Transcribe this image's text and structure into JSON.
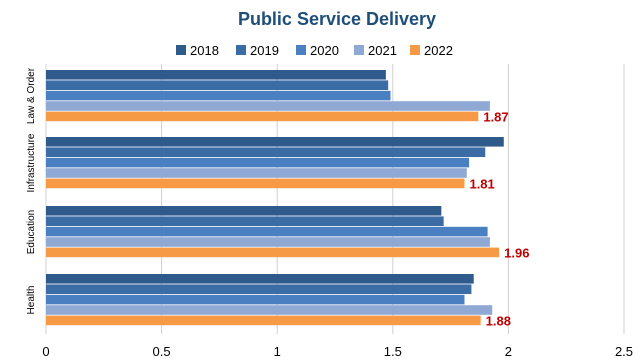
{
  "chart_data": {
    "type": "bar",
    "orientation": "horizontal",
    "title": "Public Service Delivery",
    "categories": [
      "Law & Order",
      "Infrastructure",
      "Education",
      "Health"
    ],
    "series": [
      {
        "name": "2018",
        "color": "#2f5a8c",
        "values": [
          1.47,
          1.98,
          1.71,
          1.85
        ]
      },
      {
        "name": "2019",
        "color": "#3c6ca6",
        "values": [
          1.48,
          1.9,
          1.72,
          1.84
        ]
      },
      {
        "name": "2020",
        "color": "#4a7fc1",
        "values": [
          1.49,
          1.83,
          1.91,
          1.81
        ]
      },
      {
        "name": "2021",
        "color": "#8fa9d4",
        "values": [
          1.92,
          1.82,
          1.92,
          1.93
        ]
      },
      {
        "name": "2022",
        "color": "#f79a46",
        "values": [
          1.87,
          1.81,
          1.96,
          1.88
        ],
        "labels": [
          "1.87",
          "1.81",
          "1.96",
          "1.88"
        ]
      }
    ],
    "xlim": [
      0,
      2.5
    ],
    "x_ticks": [
      "0",
      "0.5",
      "1",
      "1.5",
      "2",
      "2.5"
    ],
    "grid": true,
    "legend_position": "top"
  }
}
